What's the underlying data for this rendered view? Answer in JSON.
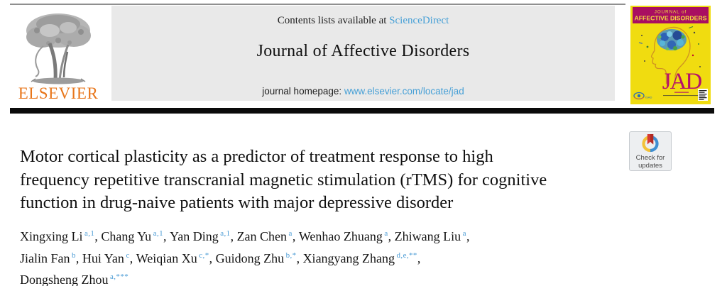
{
  "masthead": {
    "contents_prefix": "Contents lists available at ",
    "contents_link": "ScienceDirect",
    "journal_title": "Journal of Affective Disorders",
    "homepage_prefix": "journal homepage: ",
    "homepage_link": "www.elsevier.com/locate/jad",
    "publisher_wordmark": "ELSEVIER"
  },
  "cover": {
    "masthead_line1": "JOURNAL of",
    "masthead_line2": "AFFECTIVE DISORDERS",
    "monogram": "JAD",
    "society_label": "ISAD"
  },
  "update_badge": {
    "line1": "Check for",
    "line2": "updates"
  },
  "article": {
    "title_lines": [
      "Motor cortical plasticity as a predictor of treatment response to high",
      "frequency repetitive transcranial magnetic stimulation (rTMS) for cognitive",
      "function in drug-naive patients with major depressive disorder"
    ]
  },
  "authors": {
    "lines": [
      [
        {
          "name": "Xingxing Li",
          "sup": "a,1"
        },
        {
          "name": "Chang Yu",
          "sup": "a,1"
        },
        {
          "name": "Yan Ding",
          "sup": "a,1"
        },
        {
          "name": "Zan Chen",
          "sup": "a"
        },
        {
          "name": "Wenhao Zhuang",
          "sup": "a"
        },
        {
          "name": "Zhiwang Liu",
          "sup": "a"
        }
      ],
      [
        {
          "name": "Jialin Fan",
          "sup": "b"
        },
        {
          "name": "Hui Yan",
          "sup": "c"
        },
        {
          "name": "Weiqian Xu",
          "sup": "c,*"
        },
        {
          "name": "Guidong Zhu",
          "sup": "b,*"
        },
        {
          "name": "Xiangyang Zhang",
          "sup": "d,e,**"
        }
      ],
      [
        {
          "name": "Dongsheng Zhou",
          "sup": "a,***"
        }
      ]
    ]
  },
  "colors": {
    "link_blue": "#459fd6",
    "superscript_blue": "#4a9bd5",
    "elsevier_orange": "#e8761b",
    "header_gray": "#e9e9e9",
    "cover_magenta": "#a90e61",
    "cover_yellow": "#f0dc10",
    "crossmark_red": "#d63a32",
    "crossmark_blue": "#3f8fd2",
    "crossmark_yellow": "#f2c23a"
  }
}
